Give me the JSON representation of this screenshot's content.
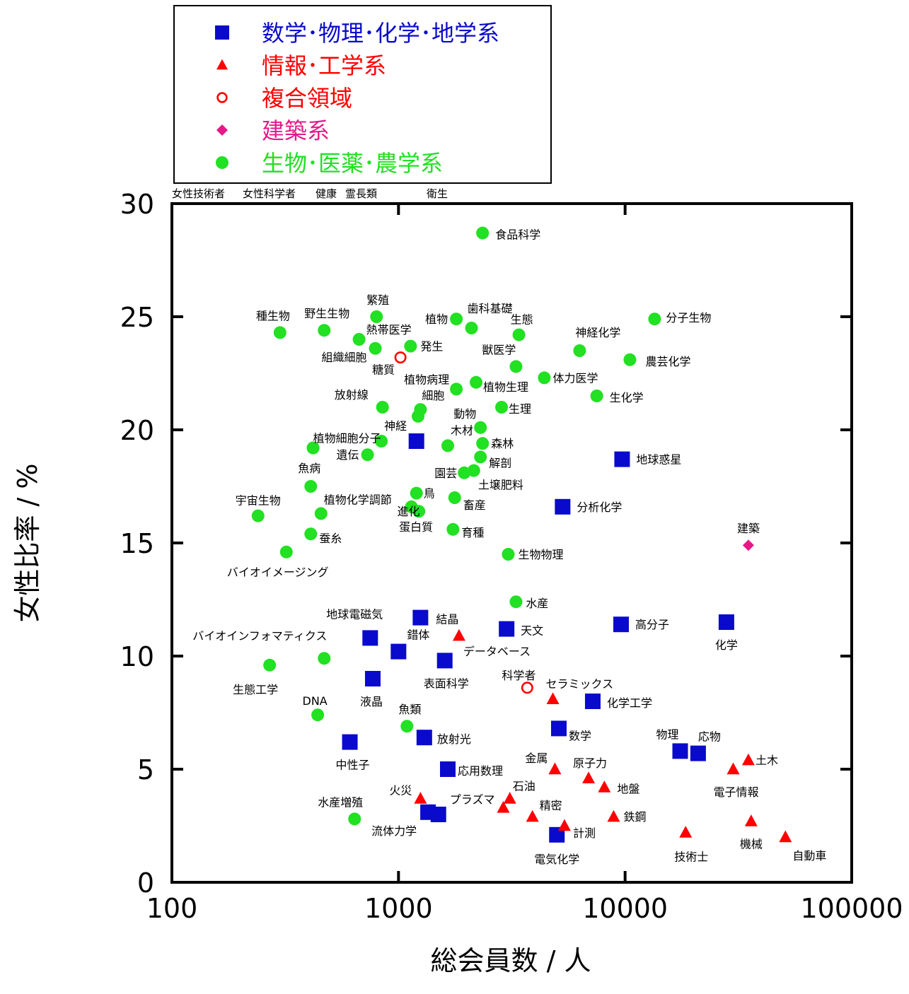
{
  "chart_data": {
    "type": "scatter",
    "title": "",
    "xlabel": "総会員数 / 人",
    "ylabel": "女性比率 / %",
    "xscale": "log",
    "xlim": [
      100,
      100000
    ],
    "ylim": [
      0,
      30
    ],
    "x_ticks": [
      100,
      1000,
      10000,
      100000
    ],
    "x_tick_labels": [
      "100",
      "1000",
      "10000",
      "100000"
    ],
    "y_ticks": [
      0,
      5,
      10,
      15,
      20,
      25,
      30
    ],
    "y_tick_labels": [
      "0",
      "5",
      "10",
      "15",
      "20",
      "25",
      "30"
    ],
    "grid": false,
    "legend_position": "top-left, above plot",
    "top_strip_labels": [
      "女性技術者",
      "女性科学者",
      "健康",
      "霊長類",
      "衛生"
    ],
    "series": [
      {
        "name": "数学･物理･化学･地学系",
        "marker": "square",
        "color": "#0a0acc",
        "points": [
          {
            "label": "地球惑星",
            "x": 9700,
            "y": 18.7
          },
          {
            "label": "分析化学",
            "x": 5300,
            "y": 16.6
          },
          {
            "label": "神経",
            "x": 1200,
            "y": 19.5,
            "label_hidden": true
          },
          {
            "label": "結晶",
            "x": 1250,
            "y": 11.7
          },
          {
            "label": "地球電磁気",
            "x": 750,
            "y": 10.8
          },
          {
            "label": "錯体",
            "x": 1000,
            "y": 10.2
          },
          {
            "label": "表面科学",
            "x": 1600,
            "y": 9.8
          },
          {
            "label": "液晶",
            "x": 770,
            "y": 9.0
          },
          {
            "label": "天文",
            "x": 3000,
            "y": 11.2
          },
          {
            "label": "高分子",
            "x": 9600,
            "y": 11.4
          },
          {
            "label": "化学",
            "x": 28000,
            "y": 11.5
          },
          {
            "label": "化学工学",
            "x": 7200,
            "y": 8.0
          },
          {
            "label": "数学",
            "x": 5100,
            "y": 6.8
          },
          {
            "label": "放射光",
            "x": 1300,
            "y": 6.4
          },
          {
            "label": "中性子",
            "x": 610,
            "y": 6.2
          },
          {
            "label": "物理",
            "x": 17500,
            "y": 5.8
          },
          {
            "label": "応物",
            "x": 21000,
            "y": 5.7
          },
          {
            "label": "応用数理",
            "x": 1650,
            "y": 5.0
          },
          {
            "label": "流体力学",
            "x": 1350,
            "y": 3.1
          },
          {
            "label": "流体力学2",
            "x": 1500,
            "y": 3.0,
            "label_hidden": true
          },
          {
            "label": "電気化学",
            "x": 5000,
            "y": 2.1
          }
        ]
      },
      {
        "name": "情報･工学系",
        "marker": "triangle",
        "color": "#ff0000",
        "points": [
          {
            "label": "データベース",
            "x": 1850,
            "y": 10.9
          },
          {
            "label": "セラミックス",
            "x": 4800,
            "y": 8.1
          },
          {
            "label": "金属",
            "x": 4900,
            "y": 5.0
          },
          {
            "label": "原子力",
            "x": 6900,
            "y": 4.6
          },
          {
            "label": "地盤",
            "x": 8100,
            "y": 4.2
          },
          {
            "label": "石油",
            "x": 3100,
            "y": 3.7
          },
          {
            "label": "火災",
            "x": 1250,
            "y": 3.7
          },
          {
            "label": "プラズマ",
            "x": 2900,
            "y": 3.3
          },
          {
            "label": "精密",
            "x": 3900,
            "y": 2.9
          },
          {
            "label": "鉄鋼",
            "x": 8900,
            "y": 2.9
          },
          {
            "label": "計測",
            "x": 5400,
            "y": 2.5
          },
          {
            "label": "技術士",
            "x": 18500,
            "y": 2.2
          },
          {
            "label": "機械",
            "x": 36000,
            "y": 2.7
          },
          {
            "label": "自動車",
            "x": 51000,
            "y": 2.0
          },
          {
            "label": "電子情報",
            "x": 30000,
            "y": 5.0
          },
          {
            "label": "土木",
            "x": 35000,
            "y": 5.4
          }
        ]
      },
      {
        "name": "複合領域",
        "marker": "circle-open",
        "color": "#ff0000",
        "points": [
          {
            "label": "糖質",
            "x": 1020,
            "y": 23.2
          },
          {
            "label": "科学者",
            "x": 3700,
            "y": 8.6
          }
        ]
      },
      {
        "name": "建築系",
        "marker": "diamond",
        "color": "#e6198a",
        "points": [
          {
            "label": "建築",
            "x": 35000,
            "y": 14.9
          }
        ]
      },
      {
        "name": "生物･医薬･農学系",
        "marker": "circle",
        "color": "#22e022",
        "points": [
          {
            "label": "食品科学",
            "x": 2350,
            "y": 28.7
          },
          {
            "label": "繁殖",
            "x": 800,
            "y": 25.0
          },
          {
            "label": "種生物",
            "x": 300,
            "y": 24.3
          },
          {
            "label": "野生生物",
            "x": 470,
            "y": 24.4
          },
          {
            "label": "熱帯医学",
            "x": 670,
            "y": 24.0
          },
          {
            "label": "組織細胞",
            "x": 790,
            "y": 23.6
          },
          {
            "label": "発生",
            "x": 1130,
            "y": 23.7
          },
          {
            "label": "植物",
            "x": 1800,
            "y": 24.9
          },
          {
            "label": "歯科基礎",
            "x": 2100,
            "y": 24.5
          },
          {
            "label": "生態",
            "x": 3400,
            "y": 24.2
          },
          {
            "label": "分子生物",
            "x": 13500,
            "y": 24.9
          },
          {
            "label": "神経化学",
            "x": 6300,
            "y": 23.5
          },
          {
            "label": "農芸化学",
            "x": 10500,
            "y": 23.1
          },
          {
            "label": "獣医学",
            "x": 3300,
            "y": 22.8
          },
          {
            "label": "体力医学",
            "x": 4400,
            "y": 22.3
          },
          {
            "label": "植物病理",
            "x": 1800,
            "y": 21.8
          },
          {
            "label": "植物生理",
            "x": 2200,
            "y": 22.1
          },
          {
            "label": "生化学",
            "x": 7500,
            "y": 21.5
          },
          {
            "label": "放射線",
            "x": 850,
            "y": 21.0
          },
          {
            "label": "細胞",
            "x": 1250,
            "y": 20.9
          },
          {
            "label": "細胞2",
            "x": 1220,
            "y": 20.6,
            "label_hidden": true
          },
          {
            "label": "生理",
            "x": 2850,
            "y": 21.0
          },
          {
            "label": "動物",
            "x": 2300,
            "y": 20.1
          },
          {
            "label": "植物細胞分子",
            "x": 420,
            "y": 19.2
          },
          {
            "label": "神経",
            "x": 840,
            "y": 19.5
          },
          {
            "label": "遺伝",
            "x": 730,
            "y": 18.9
          },
          {
            "label": "木材",
            "x": 1650,
            "y": 19.3
          },
          {
            "label": "森林",
            "x": 2350,
            "y": 19.4
          },
          {
            "label": "解剖",
            "x": 2300,
            "y": 18.8
          },
          {
            "label": "園芸",
            "x": 1950,
            "y": 18.1
          },
          {
            "label": "土壌肥料",
            "x": 2150,
            "y": 18.2
          },
          {
            "label": "比較",
            "x": 420,
            "y": 19.2,
            "label_hidden": true
          },
          {
            "label": "魚病",
            "x": 410,
            "y": 17.5
          },
          {
            "label": "鳥",
            "x": 1200,
            "y": 17.2
          },
          {
            "label": "畜産",
            "x": 1770,
            "y": 17.0
          },
          {
            "label": "宇宙生物",
            "x": 240,
            "y": 16.2
          },
          {
            "label": "植物化学調節",
            "x": 455,
            "y": 16.3
          },
          {
            "label": "進化",
            "x": 1140,
            "y": 16.6
          },
          {
            "label": "蛋白質",
            "x": 1230,
            "y": 16.4
          },
          {
            "label": "蚕糸",
            "x": 410,
            "y": 15.4
          },
          {
            "label": "育種",
            "x": 1740,
            "y": 15.6
          },
          {
            "label": "バイオイメージング",
            "x": 320,
            "y": 14.6
          },
          {
            "label": "生物物理",
            "x": 3050,
            "y": 14.5
          },
          {
            "label": "水産",
            "x": 3300,
            "y": 12.4
          },
          {
            "label": "バイオインフォマティクス",
            "x": 470,
            "y": 9.9
          },
          {
            "label": "生態工学",
            "x": 270,
            "y": 9.6
          },
          {
            "label": "DNA",
            "x": 440,
            "y": 7.4
          },
          {
            "label": "魚類",
            "x": 1090,
            "y": 6.9
          },
          {
            "label": "水産増殖",
            "x": 640,
            "y": 2.8
          }
        ]
      }
    ],
    "legend": [
      {
        "label": "数学･物理･化学･地学系",
        "marker": "square",
        "color": "#0a0acc"
      },
      {
        "label": "情報･工学系",
        "marker": "triangle",
        "color": "#ff0000"
      },
      {
        "label": "複合領域",
        "marker": "circle-open",
        "color": "#ff0000"
      },
      {
        "label": "建築系",
        "marker": "diamond",
        "color": "#e6198a"
      },
      {
        "label": "生物･医薬･農学系",
        "marker": "circle",
        "color": "#22e022"
      }
    ]
  }
}
